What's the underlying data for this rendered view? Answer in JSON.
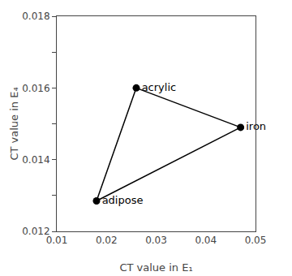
{
  "chart_data": {
    "type": "scatter",
    "xlabel": "CT value in E₁",
    "ylabel": "CT value in E₄",
    "series": [
      {
        "type": "line",
        "color": "#000000",
        "line_style": "solid",
        "x": [
          0.026,
          0.018,
          0.047,
          0.026
        ],
        "y": [
          0.016,
          0.01285,
          0.0149,
          0.016
        ]
      },
      {
        "type": "scatter",
        "color": "#000000",
        "marker": "circle",
        "x": [
          0.026,
          0.018,
          0.047
        ],
        "y": [
          0.016,
          0.01285,
          0.0149
        ],
        "labels": [
          "acrylic",
          "adipose",
          "iron"
        ]
      }
    ],
    "xlim": [
      0.01,
      0.05
    ],
    "xticks": [
      0.01,
      0.02,
      0.03,
      0.04,
      0.05
    ],
    "ylim": [
      0.012,
      0.018
    ],
    "yticks": [
      {
        "value": 0.012,
        "label": "0.012"
      },
      {
        "value": 0.013,
        "label": null
      },
      {
        "value": 0.014,
        "label": "0.014"
      },
      {
        "value": 0.015,
        "label": null
      },
      {
        "value": 0.016,
        "label": "0.016"
      },
      {
        "value": 0.017,
        "label": null
      },
      {
        "value": 0.018,
        "label": "0.018"
      }
    ],
    "grid": false
  }
}
